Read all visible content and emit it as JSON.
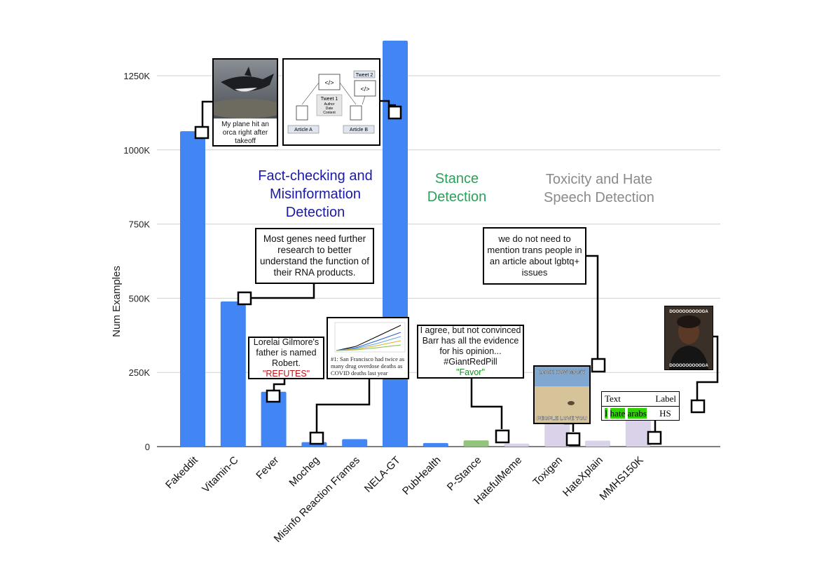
{
  "chart_data": {
    "type": "bar",
    "ylabel": "Num Examples",
    "xlabel": "",
    "title": "",
    "ylim": [
      0,
      1250000
    ],
    "yticks": [
      {
        "value": 0,
        "label": "0"
      },
      {
        "value": 250000,
        "label": "250K"
      },
      {
        "value": 500000,
        "label": "500K"
      },
      {
        "value": 750000,
        "label": "750K"
      },
      {
        "value": 1000000,
        "label": "1000K"
      },
      {
        "value": 1250000,
        "label": "1250K"
      }
    ],
    "grid": true,
    "categories": [
      "Fakeddit",
      "Vitamin-C",
      "Fever",
      "Mocheg",
      "Misinfo Reaction Frames",
      "NELA-GT",
      "PubHealth",
      "P-Stance",
      "HatefulMeme",
      "Toxigen",
      "HateXplain",
      "MMHS150K"
    ],
    "values": [
      1063000,
      489000,
      185000,
      15000,
      25000,
      1375000,
      12000,
      21000,
      10000,
      274000,
      20000,
      150000
    ],
    "colors": [
      "#4285f4",
      "#4285f4",
      "#4285f4",
      "#4285f4",
      "#4285f4",
      "#4285f4",
      "#4285f4",
      "#93c47d",
      "#d9d2e9",
      "#d9d2e9",
      "#d9d2e9",
      "#d9d2e9"
    ],
    "groups": [
      {
        "label_lines": [
          "Fact-checking and",
          "Misinformation",
          "Detection"
        ],
        "color": "#1a1aa6"
      },
      {
        "label_lines": [
          "Stance",
          "Detection"
        ],
        "color": "#2aa15a"
      },
      {
        "label_lines": [
          "Toxicity and Hate",
          "Speech Detection"
        ],
        "color": "#8a8a8a"
      }
    ]
  },
  "examples": {
    "fakeddit_caption": "My plane hit an orca right after takeoff",
    "nela_diagram": {
      "tweet2": "Tweet 2",
      "tweet1": "Tweet 1",
      "author": "Author",
      "date": "Date",
      "content": "Content",
      "article_a": "Article A",
      "article_b": "Article B",
      "code": "</>"
    },
    "vitaminc_text": "Most genes need further research to better understand the function of their RNA products.",
    "fever_text": "Lorelai Gilmore's father is named Robert.",
    "fever_label": "\"REFUTES\"",
    "mrf_text": "#1: San Francisco had twice as many drug overdose deaths as COVID deaths last year",
    "pstance_text": "I agree, but not convinced Barr has all the evidence for his opinion... #GiantRedPill",
    "pstance_label": "\"Favor\"",
    "toxigen_text": "we do not need to mention trans people in an article about lgbtq+ issues",
    "hatefulmeme_top": "LOOK HOW MANY",
    "hatefulmeme_bottom": "PEOPLE LOVE YOU",
    "hatexplain": {
      "col_text": "Text",
      "col_label": "Label",
      "word1": "I",
      "word2": "hate",
      "word3": "arabs",
      "label": "HS"
    },
    "mmhs_top": "DOOOOOOOOOGA",
    "mmhs_bottom": "DOOOOOOOOOGA"
  }
}
